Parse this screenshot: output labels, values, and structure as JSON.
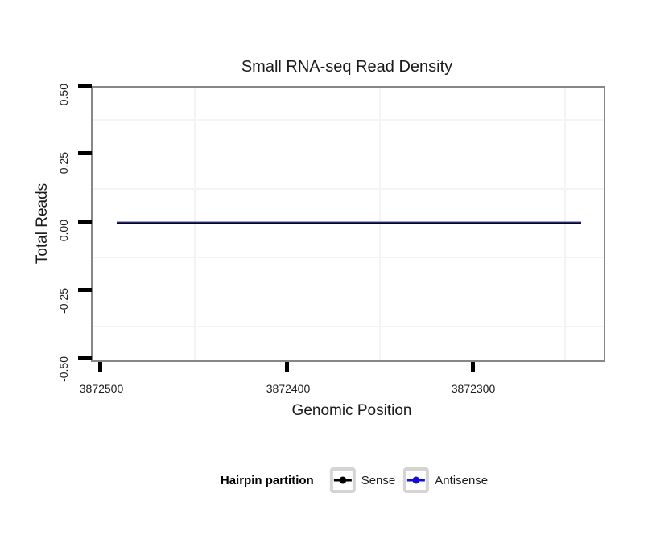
{
  "title": "Small RNA-seq Read Density",
  "y_axis": {
    "label": "Total Reads",
    "tick_labels": [
      "0.50",
      "0.25",
      "0.00",
      "-0.25",
      "-0.50"
    ]
  },
  "x_axis": {
    "label": "Genomic Position",
    "tick_labels": [
      "3872500",
      "3872400",
      "3872300"
    ]
  },
  "legend": {
    "title": "Hairpin partition",
    "items": [
      {
        "label": "Sense",
        "color": "#000000"
      },
      {
        "label": "Antisense",
        "color": "#0f0fd8"
      }
    ]
  },
  "colors": {
    "panel_border": "#878787",
    "grid_minor": "#f4f4f4",
    "tick_mark": "#000000",
    "overlap_line": "#10103c",
    "legend_key_border": "#d4d4d4"
  },
  "chart_data": {
    "type": "line",
    "title": "Small RNA-seq Read Density",
    "xlabel": "Genomic Position",
    "ylabel": "Total Reads",
    "x_reversed": true,
    "x_ticks": [
      3872500,
      3872400,
      3872300
    ],
    "y_ticks": [
      -0.5,
      -0.25,
      0.0,
      0.25,
      0.5
    ],
    "xlim": [
      3872505,
      3872229
    ],
    "ylim": [
      -0.51,
      0.51
    ],
    "grid": "minor-gridlines-only",
    "legend_position": "bottom",
    "legend_title": "Hairpin partition",
    "series": [
      {
        "name": "Sense",
        "color": "#000000",
        "x": [
          3872491,
          3872242
        ],
        "y": [
          0,
          0
        ]
      },
      {
        "name": "Antisense",
        "color": "#0f0fd8",
        "x": [
          3872491,
          3872242
        ],
        "y": [
          0,
          0
        ]
      }
    ],
    "note": "Both series are flat at 0 reads across the region, overlapping as one navy line"
  }
}
